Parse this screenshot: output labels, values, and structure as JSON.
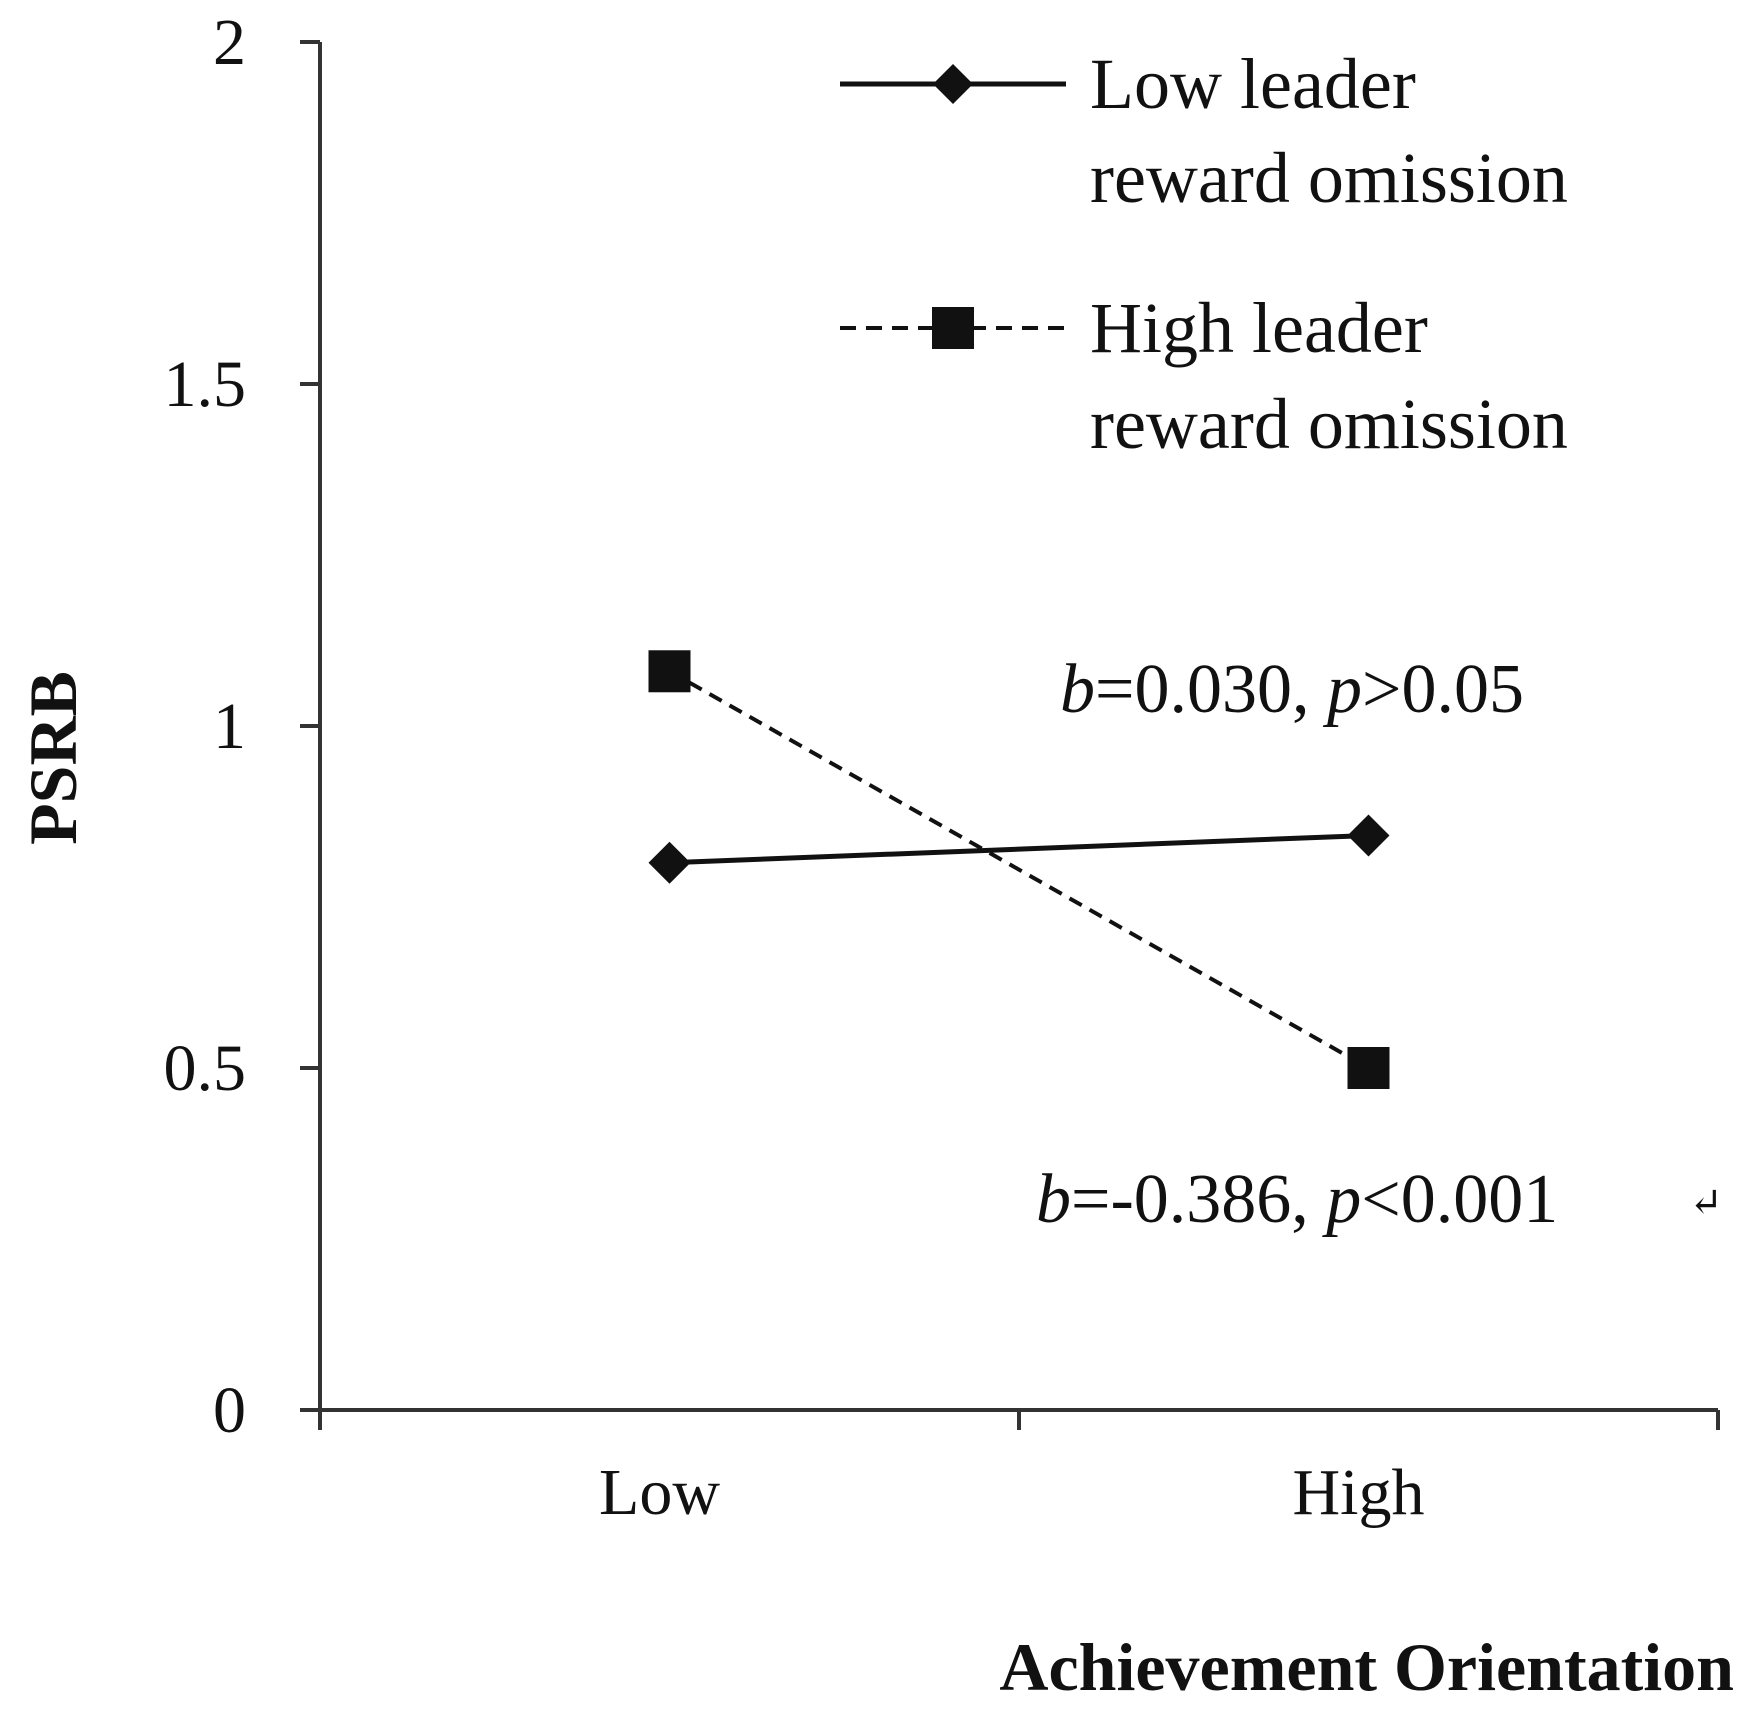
{
  "chart_data": {
    "type": "line",
    "categories": [
      "Low",
      "High"
    ],
    "ylim": [
      0,
      2
    ],
    "yticks": [
      "0",
      "0.5",
      "1",
      "1.5",
      "2"
    ],
    "xlabel": "Achievement Orientation",
    "ylabel": "PSRB",
    "grid": false,
    "legend_position": "top-right",
    "series": [
      {
        "name": "Low leader reward omission",
        "name_lines": [
          "Low leader",
          "reward omission"
        ],
        "values": [
          0.8,
          0.84
        ],
        "line_style": "solid",
        "marker": "diamond",
        "color": "#111111"
      },
      {
        "name": "High leader reward omission",
        "name_lines": [
          "High leader",
          "reward omission"
        ],
        "values": [
          1.08,
          0.5
        ],
        "line_style": "dashed",
        "marker": "square",
        "color": "#111111"
      }
    ],
    "annotations": [
      {
        "series": "Low leader reward omission",
        "b_symbol": "b",
        "b_value": "=0.030, ",
        "p_symbol": "p",
        "p_value": ">0.05"
      },
      {
        "series": "High leader reward omission",
        "b_symbol": "b",
        "b_value": "=-0.386, ",
        "p_symbol": "p",
        "p_value": "<0.001",
        "trailing_mark": "↵"
      }
    ]
  }
}
